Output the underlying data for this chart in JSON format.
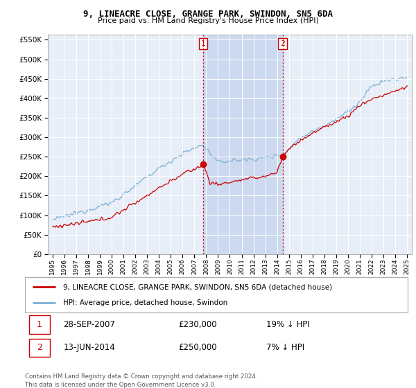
{
  "title": "9, LINEACRE CLOSE, GRANGE PARK, SWINDON, SN5 6DA",
  "subtitle": "Price paid vs. HM Land Registry's House Price Index (HPI)",
  "legend_label_red": "9, LINEACRE CLOSE, GRANGE PARK, SWINDON, SN5 6DA (detached house)",
  "legend_label_blue": "HPI: Average price, detached house, Swindon",
  "transaction1_date": "28-SEP-2007",
  "transaction1_price": "£230,000",
  "transaction1_hpi": "19% ↓ HPI",
  "transaction2_date": "13-JUN-2014",
  "transaction2_price": "£250,000",
  "transaction2_hpi": "7% ↓ HPI",
  "footer": "Contains HM Land Registry data © Crown copyright and database right 2024.\nThis data is licensed under the Open Government Licence v3.0.",
  "ylim": [
    0,
    562500
  ],
  "yticks": [
    0,
    50000,
    100000,
    150000,
    200000,
    250000,
    300000,
    350000,
    400000,
    450000,
    500000,
    550000
  ],
  "plot_background": "#e8eef8",
  "grid_color": "#ffffff",
  "red_color": "#cc0000",
  "blue_color": "#7ab0d4",
  "vline_color": "#cc0000",
  "span_color": "#ccd9f0",
  "t_buy1": 2007.75,
  "t_buy2": 2014.46,
  "price1": 230000,
  "price2": 250000
}
